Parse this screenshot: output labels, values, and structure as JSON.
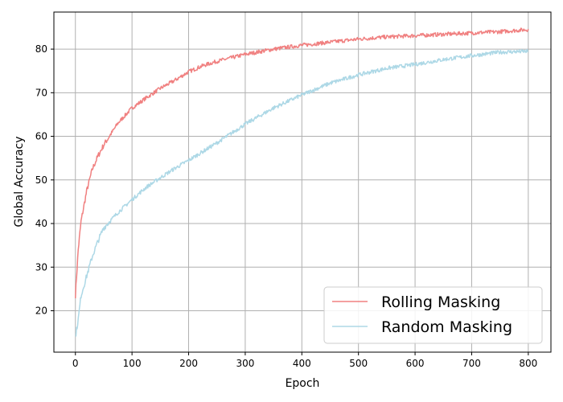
{
  "chart_data": {
    "type": "line",
    "title": "",
    "xlabel": "Epoch",
    "ylabel": "Global Accuracy",
    "xlim": [
      -38,
      840
    ],
    "ylim": [
      10.5,
      88.5
    ],
    "xticks": [
      0,
      100,
      200,
      300,
      400,
      500,
      600,
      700,
      800
    ],
    "yticks": [
      20,
      30,
      40,
      50,
      60,
      70,
      80
    ],
    "grid": true,
    "legend_position": "lower-right",
    "series": [
      {
        "name": "Rolling Masking",
        "color": "#f08080",
        "x": [
          0,
          5,
          10,
          20,
          30,
          40,
          50,
          60,
          75,
          100,
          125,
          150,
          175,
          200,
          225,
          250,
          300,
          350,
          400,
          450,
          500,
          550,
          600,
          650,
          700,
          750,
          800
        ],
        "y": [
          23.5,
          34,
          40.5,
          47.5,
          52.5,
          55.5,
          58,
          60,
          63,
          66.5,
          68.8,
          71,
          72.8,
          74.8,
          76.2,
          77.2,
          78.8,
          80,
          80.9,
          81.6,
          82.3,
          82.8,
          83.1,
          83.4,
          83.7,
          84,
          84.5
        ]
      },
      {
        "name": "Random Masking",
        "color": "#add8e6",
        "x": [
          0,
          5,
          10,
          20,
          30,
          40,
          50,
          75,
          100,
          125,
          150,
          175,
          200,
          225,
          250,
          300,
          350,
          400,
          450,
          500,
          550,
          600,
          650,
          700,
          750,
          800
        ],
        "y": [
          14,
          18,
          23.5,
          28,
          32.5,
          36,
          39,
          42.5,
          45.5,
          48.3,
          50.5,
          52.6,
          54.5,
          56.5,
          58.5,
          62.8,
          66.5,
          69.5,
          72.2,
          74.1,
          75.6,
          76.5,
          77.6,
          78.5,
          79.3,
          79.5
        ]
      }
    ]
  }
}
